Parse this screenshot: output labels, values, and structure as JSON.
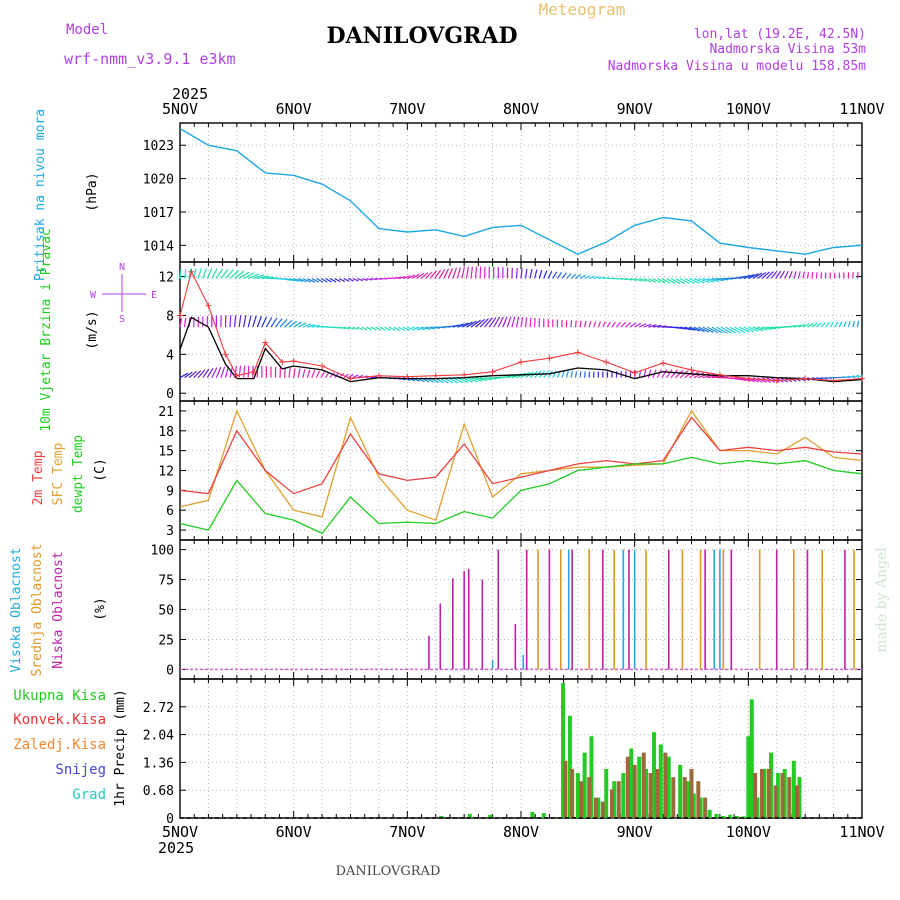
{
  "header": {
    "model_label": "Model",
    "model_name": "wrf-nmm_v3.9.1 e3km",
    "station": "DANILOVGRAD",
    "product": "Meteogram",
    "lonlat": "lon,lat (19.2E, 42.5N)",
    "altitude": "Nadmorska Visina 53m",
    "model_altitude": "Nadmorska Visina u modelu 158.85m",
    "footer_station": "DANILOVGRAD",
    "credit": "made by Angel"
  },
  "colors": {
    "pressure": "#1ea7e6",
    "wind_speed": "#000000",
    "wind_gust": "#f23a3a",
    "t2m": "#ef4040",
    "tsfc": "#e0a030",
    "dewpt": "#22cc22",
    "cloud_high": "#22aadd",
    "cloud_mid": "#dd9920",
    "cloud_low": "#bb22aa",
    "precip_total": "#22cc22",
    "precip_conv": "#ee3333",
    "precip_frz": "#ee8833",
    "precip_snow": "#4444dd",
    "precip_grad": "#22ccbb",
    "violet": "#b040e0",
    "beige": "#e8c070"
  },
  "time_axis": {
    "year": "2025",
    "labels": [
      "5NOV",
      "6NOV",
      "7NOV",
      "8NOV",
      "9NOV",
      "10NOV",
      "11NOV"
    ]
  },
  "chart_data": [
    {
      "type": "line",
      "title": "Pritisak na nivou mora",
      "ylabel": "(hPa)",
      "ylim": [
        1012.5,
        1025
      ],
      "yticks": [
        "1014",
        "1017",
        "1020",
        "1023"
      ],
      "x": [
        0,
        0.25,
        0.5,
        0.75,
        1,
        1.25,
        1.5,
        1.75,
        2,
        2.25,
        2.5,
        2.75,
        3,
        3.25,
        3.5,
        3.75,
        4,
        4.25,
        4.5,
        4.75,
        5,
        5.25,
        5.5,
        5.75,
        6
      ],
      "series": [
        {
          "name": "Pressure",
          "values": [
            1024.5,
            1023,
            1022.5,
            1020.5,
            1020.3,
            1019.5,
            1018,
            1015.5,
            1015.2,
            1015.4,
            1014.8,
            1015.6,
            1015.8,
            1014.5,
            1013.2,
            1014.3,
            1015.8,
            1016.5,
            1016.2,
            1014.2,
            1013.8,
            1013.5,
            1013.2,
            1013.8,
            1014
          ]
        }
      ]
    },
    {
      "type": "line",
      "title": "10m Vjetar Brzina i Pravac",
      "ylabel": "(m/s)",
      "ylim": [
        -0.8,
        13.5
      ],
      "yticks": [
        "0",
        "4",
        "8",
        "12"
      ],
      "compass": {
        "n": "N",
        "s": "S",
        "e": "E",
        "w": "W"
      },
      "x": [
        0,
        0.1,
        0.25,
        0.4,
        0.5,
        0.65,
        0.75,
        0.9,
        1,
        1.25,
        1.5,
        1.75,
        2,
        2.25,
        2.5,
        2.75,
        3,
        3.25,
        3.5,
        3.75,
        4,
        4.25,
        4.5,
        4.75,
        5,
        5.25,
        5.5,
        5.75,
        6
      ],
      "series": [
        {
          "name": "Speed",
          "values": [
            4.5,
            7.8,
            6.8,
            3,
            1.5,
            1.5,
            4.6,
            2.5,
            2.8,
            2.4,
            1.2,
            1.6,
            1.5,
            1.5,
            1.6,
            1.8,
            1.9,
            2,
            2.6,
            2.4,
            1.5,
            2.2,
            2,
            1.8,
            1.8,
            1.6,
            1.5,
            1.2,
            1.4
          ]
        },
        {
          "name": "Gust",
          "values": [
            8,
            12.5,
            9,
            4,
            1.8,
            2.2,
            5.2,
            3.2,
            3.3,
            2.8,
            1.5,
            1.8,
            1.7,
            1.8,
            1.9,
            2.2,
            3.2,
            3.6,
            4.2,
            3.2,
            2.1,
            3.1,
            2.4,
            1.9,
            1.5,
            1.3,
            1.5,
            1.3,
            1.5
          ]
        }
      ],
      "barb_rows": [
        {
          "name": "near-surface",
          "level": 1.6
        },
        {
          "name": "mid",
          "level": 6.8
        },
        {
          "name": "upper",
          "level": 11.8
        }
      ]
    },
    {
      "type": "line",
      "title": "2m Temp / SFC Temp / dewpt Temp",
      "ylabel": "(C)",
      "ylim": [
        1.5,
        22.5
      ],
      "yticks": [
        "3",
        "6",
        "9",
        "12",
        "15",
        "18",
        "21"
      ],
      "legend": [
        "2m Temp",
        "SFC Temp",
        "dewpt Temp"
      ],
      "x": [
        0,
        0.25,
        0.5,
        0.75,
        1,
        1.25,
        1.5,
        1.75,
        2,
        2.25,
        2.5,
        2.75,
        3,
        3.25,
        3.5,
        3.75,
        4,
        4.25,
        4.5,
        4.75,
        5,
        5.25,
        5.5,
        5.75,
        6
      ],
      "series": [
        {
          "name": "2m Temp",
          "values": [
            9,
            8.5,
            18,
            12,
            8.5,
            10,
            17.5,
            11.5,
            10.5,
            11,
            16,
            10,
            11,
            12,
            13,
            13.5,
            13,
            13.5,
            20,
            15,
            15.5,
            15,
            15.5,
            14.8,
            14.5
          ]
        },
        {
          "name": "SFC Temp",
          "values": [
            6.5,
            7.5,
            21,
            12,
            6,
            5,
            20,
            11,
            6,
            4.5,
            19,
            8,
            11.5,
            12,
            12.5,
            12.5,
            12.8,
            13,
            21,
            15,
            15,
            14.5,
            17,
            14,
            13.5
          ]
        },
        {
          "name": "dewpt Temp",
          "values": [
            4,
            3,
            10.5,
            5.5,
            4.5,
            2.5,
            8,
            4,
            4.2,
            4,
            5.8,
            4.8,
            9,
            10,
            12,
            12.5,
            13,
            13,
            14,
            13,
            13.5,
            13,
            13.5,
            12,
            11.5
          ]
        }
      ]
    },
    {
      "type": "bar",
      "title": "Visoka / Srednja / Niska Oblacnost",
      "ylabel": "(%)",
      "ylim": [
        -8,
        108
      ],
      "yticks": [
        "0",
        "25",
        "50",
        "75",
        "100"
      ],
      "legend": [
        "Visoka Oblacnost",
        "Srednja Oblacnost",
        "Niska Oblacnost"
      ],
      "series": [
        {
          "name": "Niska",
          "x": [
            2.19,
            2.29,
            2.4,
            2.5,
            2.54,
            2.66,
            2.8,
            2.95,
            3.05,
            3.25,
            3.45,
            3.72,
            3.95,
            4.3,
            4.62,
            4.85,
            5.25,
            5.52,
            5.85
          ],
          "values": [
            28,
            55,
            76,
            82,
            84,
            75,
            100,
            38,
            100,
            100,
            100,
            100,
            100,
            100,
            100,
            100,
            100,
            100,
            100
          ]
        },
        {
          "name": "Srednja",
          "x": [
            3.15,
            3.35,
            3.6,
            3.82,
            4.1,
            4.42,
            4.58,
            4.78,
            5.1,
            5.4,
            5.65,
            5.93
          ],
          "values": [
            100,
            100,
            100,
            100,
            100,
            100,
            100,
            100,
            100,
            100,
            100,
            100
          ]
        },
        {
          "name": "Visoka",
          "x": [
            2.75,
            3.02,
            3.42,
            3.9,
            4.0,
            4.7,
            4.75
          ],
          "values": [
            8,
            12,
            100,
            100,
            100,
            100,
            100
          ]
        }
      ]
    },
    {
      "type": "bar",
      "title": "1hr Precip",
      "ylabel": "1hr Precip (mm)",
      "ylim": [
        0,
        3.4
      ],
      "yticks": [
        "0",
        "0.68",
        "1.36",
        "2.04",
        "2.72"
      ],
      "legend": [
        "Ukupna Kisa",
        "Konvek.Kisa",
        "Zaledj.Kisa",
        "Snijeg",
        "Grad"
      ],
      "series": [
        {
          "name": "Ukupna Kisa",
          "x": [
            2.3,
            2.55,
            2.73,
            3.1,
            3.2,
            3.37,
            3.43,
            3.5,
            3.56,
            3.62,
            3.68,
            3.75,
            3.82,
            3.9,
            3.97,
            4.04,
            4.1,
            4.17,
            4.23,
            4.3,
            4.4,
            4.47,
            4.52,
            4.58,
            4.66,
            4.72,
            4.78,
            4.84,
            4.9,
            4.96,
            5.0,
            5.03,
            5.08,
            5.14,
            5.2,
            5.26,
            5.32,
            5.4,
            5.45
          ],
          "values": [
            0.05,
            0.1,
            0.08,
            0.15,
            0.12,
            3.3,
            2.5,
            1.1,
            1.6,
            2,
            0.5,
            1.2,
            0.9,
            1.1,
            1.7,
            1.5,
            1.2,
            2.1,
            1.8,
            1.5,
            1.3,
            0.9,
            0.6,
            0.5,
            0.2,
            0.1,
            0.05,
            0.08,
            0.05,
            0.04,
            2,
            2.9,
            0.5,
            1.2,
            1.6,
            1.1,
            1.2,
            1.4,
            1
          ]
        },
        {
          "name": "Konvek.Kisa",
          "x": [
            3.39,
            3.45,
            3.53,
            3.6,
            3.66,
            3.72,
            3.8,
            3.86,
            3.94,
            4.0,
            4.08,
            4.14,
            4.2,
            4.27,
            4.34,
            4.44,
            4.5,
            4.56,
            4.62,
            5.06,
            5.12,
            5.18,
            5.24,
            5.3,
            5.36,
            5.43
          ],
          "values": [
            1.4,
            1.2,
            0.9,
            1,
            0.5,
            0.4,
            0.7,
            0.9,
            1.5,
            1.3,
            1.6,
            1.1,
            1.2,
            1.6,
            1.0,
            1.0,
            1.2,
            0.9,
            0.5,
            1.1,
            1.2,
            1.2,
            0.8,
            1.1,
            1.0,
            0.8
          ]
        }
      ]
    }
  ]
}
